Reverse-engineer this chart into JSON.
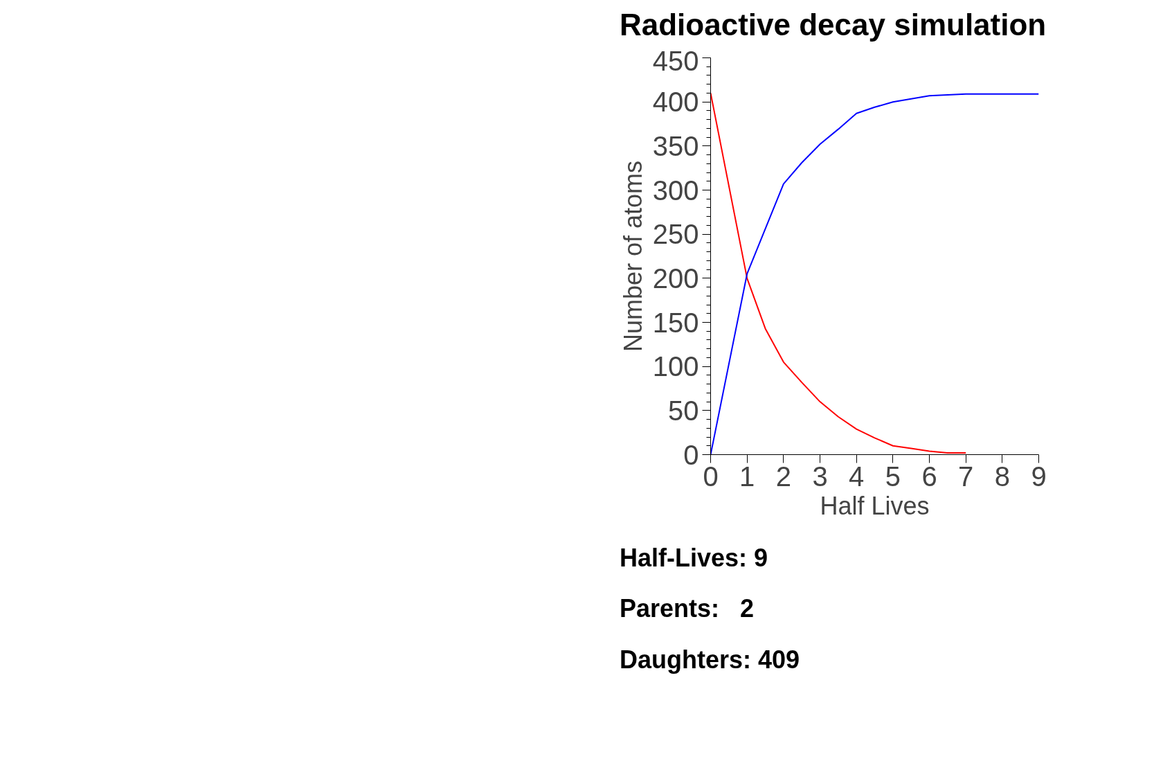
{
  "chart_data": {
    "type": "line",
    "title": "Radioactive decay simulation",
    "xlabel": "Half Lives",
    "ylabel": "Number of atoms",
    "xlim": [
      0,
      9
    ],
    "ylim": [
      0,
      450
    ],
    "xticks": [
      0,
      1,
      2,
      3,
      4,
      5,
      6,
      7,
      8,
      9
    ],
    "yticks": [
      0,
      50,
      100,
      150,
      200,
      250,
      300,
      350,
      400,
      450
    ],
    "grid": false,
    "series": [
      {
        "color": "#ff0000",
        "x": [
          0,
          1,
          1.5,
          2,
          2.5,
          3,
          3.5,
          4,
          4.5,
          5,
          5.5,
          6,
          6.5,
          7
        ],
        "values": [
          410,
          200,
          143,
          105,
          82,
          60,
          43,
          29,
          19,
          10,
          7,
          4,
          2,
          2
        ]
      },
      {
        "color": "#0000ff",
        "x": [
          0,
          1,
          2,
          2.5,
          3,
          3.5,
          4,
          4.5,
          5,
          6,
          7,
          8,
          9
        ],
        "values": [
          0,
          205,
          307,
          331,
          352,
          369,
          387,
          394,
          400,
          407,
          409,
          409,
          409
        ]
      }
    ],
    "annotations": [
      "Half-Lives: 9",
      "Parents:   2",
      "Daughters: 409"
    ]
  }
}
